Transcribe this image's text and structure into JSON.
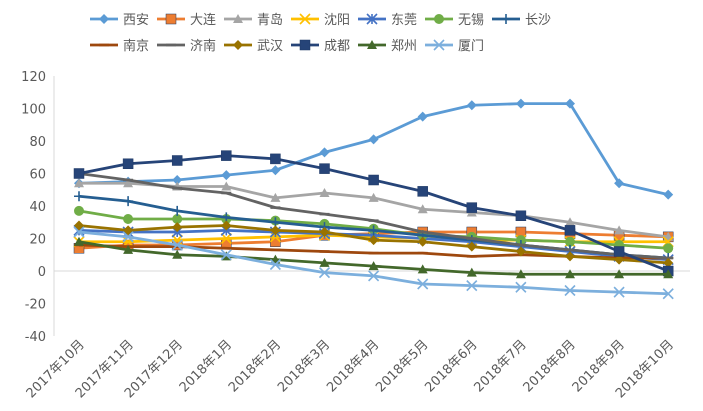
{
  "chart_data": {
    "type": "line",
    "title": "",
    "xlabel": "",
    "ylabel": "",
    "ylim": [
      -40,
      120
    ],
    "yticks": [
      -40,
      -20,
      0,
      20,
      40,
      60,
      80,
      100,
      120
    ],
    "grid": false,
    "legend_position": "top",
    "categories": [
      "2017年10月",
      "2017年11月",
      "2017年12月",
      "2018年1月",
      "2018年2月",
      "2018年3月",
      "2018年4月",
      "2018年5月",
      "2018年6月",
      "2018年7月",
      "2018年8月",
      "2018年9月",
      "2018年10月"
    ],
    "series": [
      {
        "name": "西安",
        "color": "#5B9BD5",
        "marker": "diamond",
        "values": [
          54,
          55,
          56,
          59,
          62,
          73,
          81,
          95,
          102,
          103,
          103,
          54,
          47
        ]
      },
      {
        "name": "大连",
        "color": "#ED7D31",
        "marker": "square",
        "values": [
          14,
          16,
          16,
          17,
          18,
          22,
          23,
          24,
          24,
          24,
          23,
          22,
          21
        ]
      },
      {
        "name": "青岛",
        "color": "#A5A5A5",
        "marker": "triangle",
        "values": [
          54,
          54,
          52,
          52,
          45,
          48,
          45,
          38,
          36,
          34,
          30,
          25,
          21
        ]
      },
      {
        "name": "沈阳",
        "color": "#FFC000",
        "marker": "x",
        "values": [
          18,
          18,
          19,
          20,
          21,
          22,
          21,
          20,
          19,
          19,
          18,
          18,
          18
        ]
      },
      {
        "name": "东莞",
        "color": "#4472C4",
        "marker": "star",
        "values": [
          25,
          24,
          24,
          25,
          24,
          23,
          22,
          20,
          18,
          15,
          12,
          9,
          7
        ]
      },
      {
        "name": "无锡",
        "color": "#70AD47",
        "marker": "circle",
        "values": [
          37,
          32,
          32,
          32,
          31,
          29,
          26,
          22,
          21,
          19,
          18,
          16,
          14
        ]
      },
      {
        "name": "长沙",
        "color": "#255E91",
        "marker": "plus",
        "values": [
          46,
          43,
          37,
          33,
          30,
          27,
          25,
          22,
          19,
          16,
          13,
          10,
          8
        ]
      },
      {
        "name": "南京",
        "color": "#9E480E",
        "marker": "dash",
        "values": [
          16,
          15,
          15,
          14,
          13,
          12,
          11,
          11,
          9,
          10,
          9,
          8,
          8
        ]
      },
      {
        "name": "济南",
        "color": "#636363",
        "marker": "dash",
        "values": [
          60,
          56,
          51,
          48,
          39,
          35,
          31,
          24,
          20,
          16,
          13,
          10,
          8
        ]
      },
      {
        "name": "武汉",
        "color": "#997300",
        "marker": "diamond",
        "values": [
          28,
          25,
          27,
          28,
          25,
          24,
          19,
          18,
          15,
          12,
          9,
          7,
          5
        ]
      },
      {
        "name": "成都",
        "color": "#264478",
        "marker": "square",
        "values": [
          60,
          66,
          68,
          71,
          69,
          63,
          56,
          49,
          39,
          34,
          25,
          12,
          0
        ]
      },
      {
        "name": "郑州",
        "color": "#43682B",
        "marker": "triangle",
        "values": [
          18,
          13,
          10,
          9,
          7,
          5,
          3,
          1,
          -1,
          -2,
          -2,
          -2,
          -2
        ]
      },
      {
        "name": "厦门",
        "color": "#7CAFDD",
        "marker": "x",
        "values": [
          24,
          21,
          16,
          10,
          4,
          -1,
          -3,
          -8,
          -9,
          -10,
          -12,
          -13,
          -14
        ]
      }
    ]
  }
}
